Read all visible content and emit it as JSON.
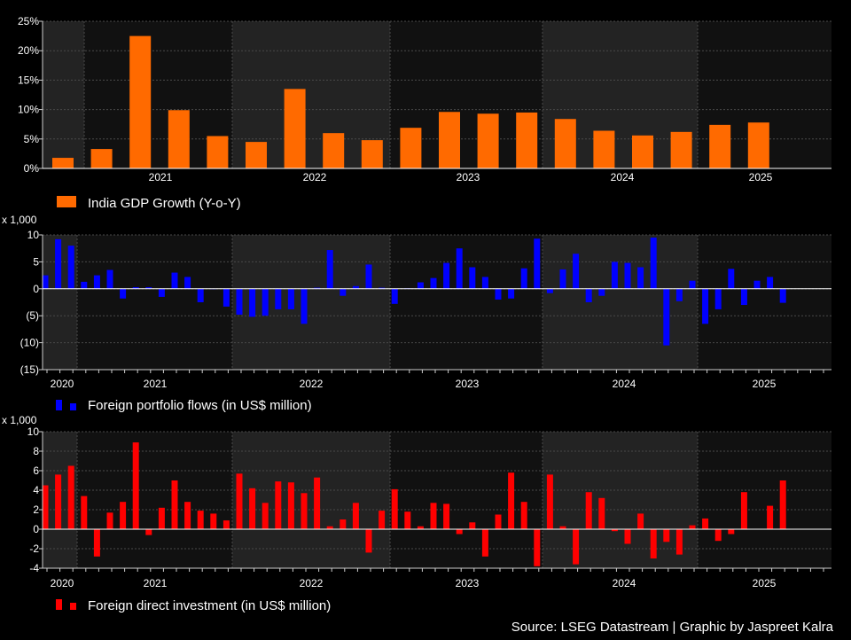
{
  "chart_data": [
    {
      "type": "bar",
      "name": "gdp",
      "series": [
        {
          "name": "India GDP Growth (Y-o-Y)",
          "color": "#ff6a00",
          "values": [
            1.8,
            3.3,
            22.5,
            9.9,
            5.5,
            4.5,
            13.5,
            6.0,
            4.8,
            6.9,
            9.6,
            9.3,
            9.5,
            8.4,
            6.4,
            5.6,
            6.2,
            7.4,
            7.8
          ]
        }
      ],
      "ylim": [
        0,
        25
      ],
      "yticks": [
        0,
        5,
        10,
        15,
        20,
        25
      ],
      "ytick_labels": [
        "0%",
        "5%",
        "10%",
        "15%",
        "20%",
        "25%"
      ],
      "year_labels": [
        "2021",
        "2022",
        "2023",
        "2024",
        "2025"
      ],
      "legend": "India GDP Growth (Y-o-Y)"
    },
    {
      "type": "bar",
      "name": "fpi",
      "series": [
        {
          "name": "Foreign portfolio flows (in US$ million)",
          "color": "#0000ff",
          "values": [
            2.5,
            9.2,
            8.0,
            1.3,
            2.5,
            3.5,
            -1.8,
            0.3,
            0.3,
            -1.5,
            3.0,
            2.2,
            -2.5,
            0,
            -3.3,
            -4.8,
            -5.2,
            -5.0,
            -3.8,
            -3.8,
            -6.5,
            0.2,
            7.2,
            -1.3,
            0.5,
            4.5,
            0.2,
            -2.8,
            0.1,
            1.2,
            2.0,
            4.8,
            7.5,
            4.0,
            2.2,
            -2.0,
            -1.8,
            3.8,
            9.3,
            -0.8,
            3.6,
            6.5,
            -2.5,
            -1.3,
            5.0,
            4.8,
            4.0,
            9.5,
            -10.5,
            -2.3,
            1.5,
            -6.5,
            -3.8,
            3.7,
            -3.0,
            1.5,
            2.2,
            -2.6
          ]
        }
      ],
      "ylim": [
        -15,
        10
      ],
      "yticks": [
        10,
        5,
        0,
        -5,
        -10,
        -15
      ],
      "ytick_labels": [
        "10",
        "5",
        "0",
        "(5)",
        "(10)",
        "(15)"
      ],
      "multiplier": "x 1,000",
      "year_labels": [
        "2020",
        "2021",
        "2022",
        "2023",
        "2024",
        "2025"
      ],
      "legend": "Foreign portfolio flows (in US$ million)"
    },
    {
      "type": "bar",
      "name": "fdi",
      "series": [
        {
          "name": "Foreign direct investment (in US$ million)",
          "color": "#ff0000",
          "values": [
            4.5,
            5.6,
            6.5,
            3.4,
            -2.8,
            1.7,
            2.8,
            8.9,
            -0.6,
            2.2,
            5.0,
            2.8,
            1.9,
            1.6,
            0.9,
            5.7,
            4.2,
            2.7,
            4.9,
            4.8,
            3.7,
            5.3,
            0.3,
            1.0,
            2.7,
            -2.4,
            1.9,
            4.1,
            1.8,
            0.3,
            2.7,
            2.6,
            -0.5,
            0.7,
            -2.8,
            1.5,
            5.8,
            2.8,
            -3.8,
            5.6,
            0.3,
            -3.6,
            3.8,
            3.2,
            -0.2,
            -1.5,
            1.6,
            -3.0,
            -1.3,
            -2.6,
            0.4,
            1.1,
            -1.2,
            -0.5,
            3.8,
            0,
            2.4,
            5.0
          ]
        }
      ],
      "ylim": [
        -4,
        10
      ],
      "yticks": [
        10,
        8,
        6,
        4,
        2,
        0,
        -2,
        -4
      ],
      "ytick_labels": [
        "10",
        "8",
        "6",
        "4",
        "2",
        "0",
        "-2",
        "-4"
      ],
      "multiplier": "x 1,000",
      "year_labels": [
        "2020",
        "2021",
        "2022",
        "2023",
        "2024",
        "2025"
      ],
      "legend": "Foreign direct investment (in US$ million)"
    }
  ],
  "source": "Source: LSEG Datastream | Graphic by Jaspreet Kalra"
}
